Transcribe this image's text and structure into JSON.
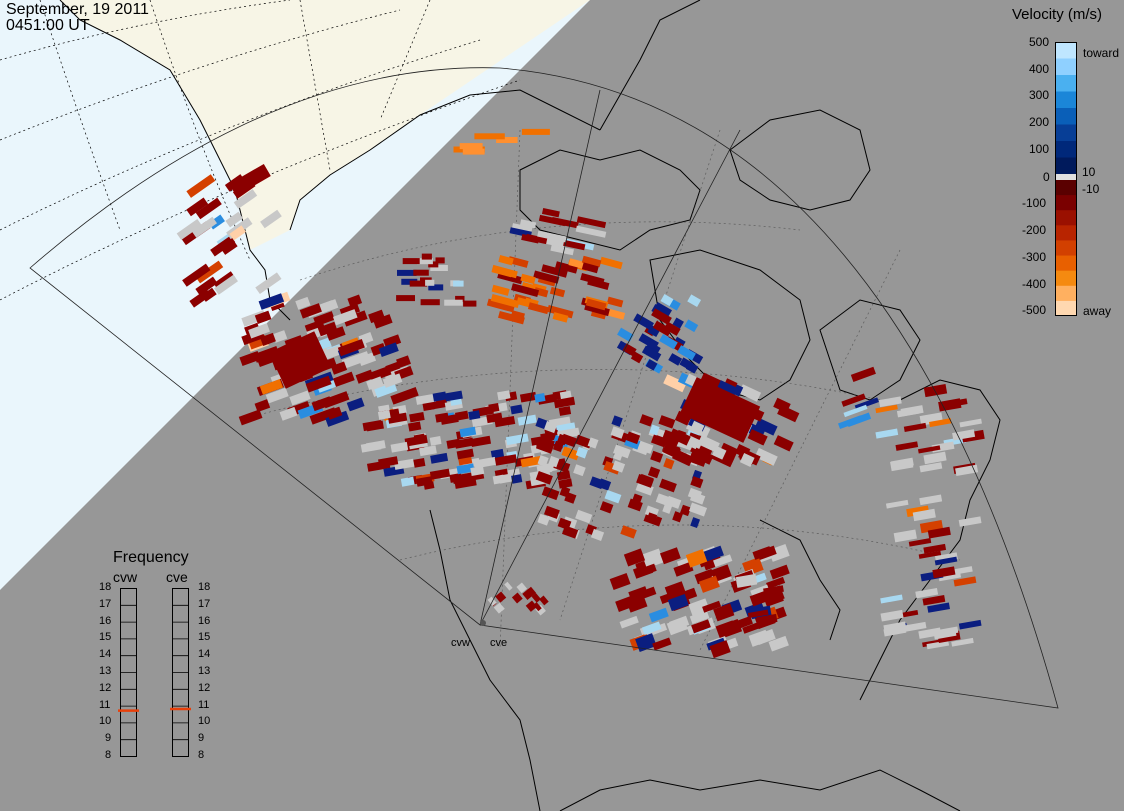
{
  "header": {
    "date": "September, 19 2011",
    "time": "0451:00 UT"
  },
  "velocity_legend": {
    "title": "Velocity (m/s)",
    "toward_label": "toward",
    "away_label": "away",
    "ticks": [
      "500",
      "400",
      "300",
      "200",
      "100",
      "10",
      "0",
      "-10",
      "-100",
      "-200",
      "-300",
      "-400",
      "-500"
    ],
    "colors_toward": [
      "#bfe6ff",
      "#8fd0ff",
      "#4ab0f0",
      "#1b86d8",
      "#0a5fb8",
      "#073e96",
      "#00287a",
      "#001a5c"
    ],
    "colors_away": [
      "#5a0000",
      "#7a0000",
      "#9a1000",
      "#b82400",
      "#d24000",
      "#e86000",
      "#f58a10",
      "#ffb060",
      "#ffd8b0"
    ],
    "colors": {
      "zero_band": "#e0e0e0",
      "ground_scatter": "#c8c8c8",
      "night": "#979797",
      "day_land": "#f7f5e6",
      "day_sea": "#eaf6fc"
    }
  },
  "frequency_legend": {
    "title": "Frequency",
    "scale": [
      "18",
      "17",
      "16",
      "15",
      "14",
      "13",
      "12",
      "11",
      "10",
      "9",
      "8"
    ],
    "radars": [
      {
        "name": "cvw",
        "frequency_mhz": 10.7
      },
      {
        "name": "cve",
        "frequency_mhz": 10.8
      }
    ]
  },
  "sites": [
    {
      "label": "cvw"
    },
    {
      "label": "cve"
    }
  ]
}
